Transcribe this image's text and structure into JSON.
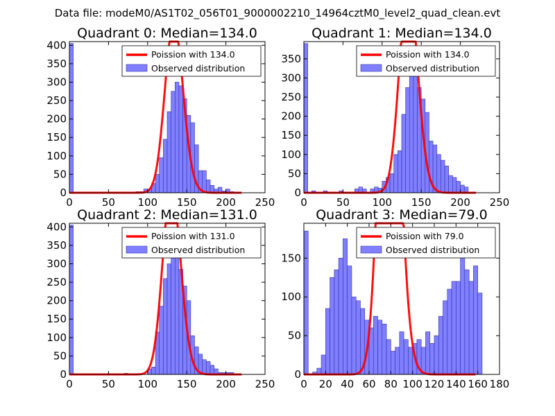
{
  "figure_title": "Data file: modeM0/AS1T02_056T01_9000002210_14964cztM0_level2_quad_clean.evt",
  "colors": {
    "bar_fill": "#7f7fff",
    "bar_edge": "#3333aa",
    "poisson_line": "#ff0000",
    "legend_bar": "#7f7fff"
  },
  "chart_data": [
    {
      "type": "bar",
      "title": "Quadrant 0: Median=134.0",
      "median": 134.0,
      "xlim": [
        0,
        250
      ],
      "ylim": [
        0,
        410
      ],
      "bin_width": 5,
      "xticks": [
        "0",
        "50",
        "100",
        "150",
        "200",
        "250"
      ],
      "yticks": [
        "0",
        "50",
        "100",
        "150",
        "200",
        "250",
        "300",
        "350",
        "400"
      ],
      "legend": {
        "poisson": "Poission with 134.0",
        "observed": "Observed distribution",
        "position": "top-right"
      },
      "bins_start": [
        0,
        85,
        90,
        95,
        100,
        105,
        110,
        115,
        120,
        125,
        130,
        135,
        140,
        145,
        150,
        155,
        160,
        165,
        170,
        175,
        180,
        185,
        190,
        195,
        200,
        205
      ],
      "values": [
        405,
        3,
        3,
        10,
        10,
        25,
        50,
        95,
        145,
        220,
        275,
        300,
        290,
        255,
        210,
        190,
        130,
        60,
        60,
        35,
        20,
        10,
        15,
        5,
        10,
        3
      ]
    },
    {
      "type": "bar",
      "title": "Quadrant 1: Median=134.0",
      "median": 134.0,
      "xlim": [
        0,
        250
      ],
      "ylim": [
        0,
        395
      ],
      "bin_width": 5,
      "xticks": [
        "0",
        "50",
        "100",
        "150",
        "200",
        "250"
      ],
      "yticks": [
        "0",
        "50",
        "100",
        "150",
        "200",
        "250",
        "300",
        "350"
      ],
      "legend": {
        "poisson": "Poission with 134.0",
        "observed": "Observed distribution",
        "position": "top-right"
      },
      "bins_start": [
        0,
        10,
        25,
        45,
        65,
        70,
        75,
        85,
        90,
        95,
        100,
        105,
        110,
        115,
        120,
        125,
        130,
        135,
        140,
        145,
        150,
        155,
        160,
        165,
        170,
        175,
        180,
        185,
        190,
        195,
        200,
        205
      ],
      "values": [
        390,
        5,
        5,
        5,
        10,
        15,
        10,
        10,
        15,
        12,
        30,
        40,
        50,
        100,
        110,
        205,
        275,
        335,
        330,
        275,
        245,
        210,
        135,
        125,
        100,
        85,
        70,
        45,
        40,
        30,
        20,
        15
      ]
    },
    {
      "type": "bar",
      "title": "Quadrant 2: Median=131.0",
      "median": 131.0,
      "xlim": [
        0,
        250
      ],
      "ylim": [
        0,
        410
      ],
      "bin_width": 5,
      "xticks": [
        "0",
        "50",
        "100",
        "150",
        "200",
        "250"
      ],
      "yticks": [
        "0",
        "50",
        "100",
        "150",
        "200",
        "250",
        "300",
        "350",
        "400"
      ],
      "legend": {
        "poisson": "Poission with 131.0",
        "observed": "Observed distribution",
        "position": "top-right"
      },
      "bins_start": [
        0,
        70,
        100,
        105,
        110,
        115,
        120,
        125,
        130,
        135,
        140,
        145,
        150,
        155,
        160,
        165,
        170,
        175,
        180,
        185,
        190,
        195,
        200,
        205
      ],
      "values": [
        405,
        3,
        15,
        20,
        115,
        185,
        260,
        300,
        345,
        340,
        285,
        240,
        200,
        105,
        75,
        55,
        40,
        35,
        25,
        15,
        5,
        5,
        5,
        5
      ]
    },
    {
      "type": "bar",
      "title": "Quadrant 3: Median=79.0",
      "median": 79.0,
      "xlim": [
        0,
        180
      ],
      "ylim": [
        0,
        195
      ],
      "bin_width": 4,
      "xticks": [
        "0",
        "20",
        "40",
        "60",
        "80",
        "100",
        "120",
        "140",
        "160",
        "180"
      ],
      "yticks": [
        "0",
        "50",
        "100",
        "150"
      ],
      "legend": {
        "poisson": "Poission with 79.0",
        "observed": "Observed distribution",
        "position": "top-right"
      },
      "bins_start": [
        0,
        8,
        12,
        16,
        20,
        24,
        28,
        32,
        36,
        40,
        44,
        48,
        52,
        56,
        60,
        64,
        68,
        72,
        76,
        80,
        84,
        88,
        92,
        96,
        100,
        104,
        108,
        112,
        116,
        120,
        124,
        128,
        132,
        136,
        140,
        144,
        148,
        152,
        156,
        160
      ],
      "values": [
        185,
        3,
        8,
        25,
        85,
        125,
        135,
        150,
        175,
        140,
        100,
        95,
        85,
        70,
        60,
        75,
        70,
        65,
        45,
        30,
        35,
        55,
        45,
        35,
        40,
        45,
        35,
        55,
        40,
        50,
        75,
        95,
        110,
        120,
        120,
        160,
        135,
        120,
        140,
        105
      ]
    }
  ]
}
